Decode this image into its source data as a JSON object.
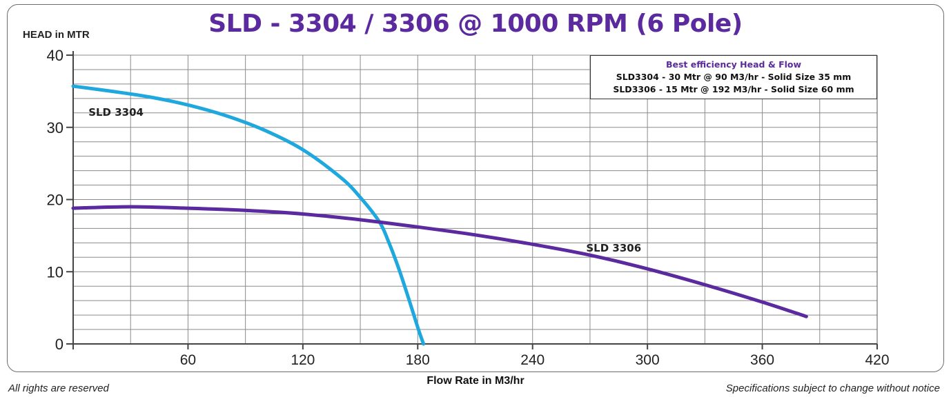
{
  "chart_data": {
    "type": "line",
    "title": "SLD - 3304 / 3306 @ 1000 RPM (6 Pole)",
    "ylabel": "HEAD in MTR",
    "xlabel": "Flow  Rate in M3/hr",
    "xlim": [
      0,
      420
    ],
    "ylim": [
      0,
      40
    ],
    "xticks": [
      60,
      120,
      180,
      240,
      300,
      360,
      420
    ],
    "yticks": [
      0,
      10,
      20,
      30,
      40
    ],
    "grid": true,
    "series": [
      {
        "name": "SLD 3304",
        "color": "#1fa8dd",
        "x": [
          0,
          20,
          40,
          60,
          80,
          100,
          120,
          140,
          150,
          160,
          165,
          170,
          175,
          180,
          183
        ],
        "y": [
          35.7,
          35.0,
          34.2,
          33.1,
          31.6,
          29.6,
          26.9,
          23.0,
          20.3,
          16.9,
          14.0,
          10.5,
          6.5,
          2.3,
          0
        ]
      },
      {
        "name": "SLD 3306",
        "color": "#5b2a9e",
        "x": [
          0,
          30,
          60,
          90,
          120,
          150,
          180,
          210,
          240,
          270,
          300,
          330,
          360,
          383
        ],
        "y": [
          18.8,
          19.0,
          18.8,
          18.5,
          18.0,
          17.2,
          16.2,
          15.1,
          13.8,
          12.3,
          10.4,
          8.2,
          5.8,
          3.8
        ]
      }
    ],
    "annotations": [
      "SLD 3304",
      "SLD 3306"
    ],
    "legend": {
      "placement": "top-right",
      "title": "Best efficiency Head & Flow",
      "lines": [
        "SLD3304 - 30 Mtr @ 90 M3/hr - Solid Size 35 mm",
        "SLD3306 - 15 Mtr @ 192 M3/hr - Solid Size 60 mm"
      ]
    }
  },
  "footer": {
    "left": "All rights are reserved",
    "right": "Specifications subject to change without notice"
  }
}
